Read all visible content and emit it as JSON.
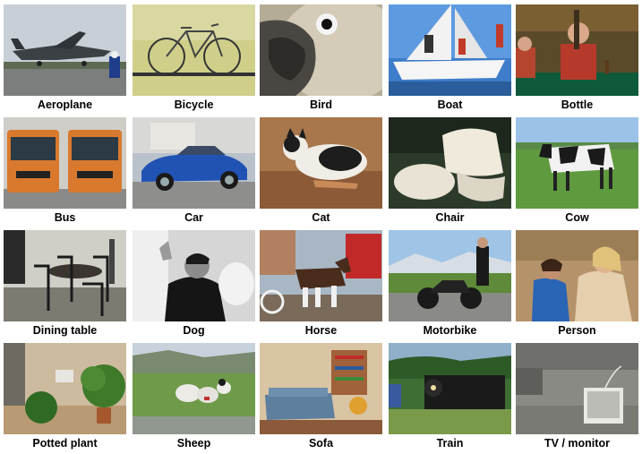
{
  "categories": [
    {
      "label": "Aeroplane",
      "icon": "aeroplane-photo"
    },
    {
      "label": "Bicycle",
      "icon": "bicycle-photo"
    },
    {
      "label": "Bird",
      "icon": "bird-photo"
    },
    {
      "label": "Boat",
      "icon": "boat-photo"
    },
    {
      "label": "Bottle",
      "icon": "bottle-photo"
    },
    {
      "label": "Bus",
      "icon": "bus-photo"
    },
    {
      "label": "Car",
      "icon": "car-photo"
    },
    {
      "label": "Cat",
      "icon": "cat-photo"
    },
    {
      "label": "Chair",
      "icon": "chair-photo"
    },
    {
      "label": "Cow",
      "icon": "cow-photo"
    },
    {
      "label": "Dining table",
      "icon": "dining-table-photo"
    },
    {
      "label": "Dog",
      "icon": "dog-photo"
    },
    {
      "label": "Horse",
      "icon": "horse-photo"
    },
    {
      "label": "Motorbike",
      "icon": "motorbike-photo"
    },
    {
      "label": "Person",
      "icon": "person-photo"
    },
    {
      "label": "Potted plant",
      "icon": "potted-plant-photo"
    },
    {
      "label": "Sheep",
      "icon": "sheep-photo"
    },
    {
      "label": "Sofa",
      "icon": "sofa-photo"
    },
    {
      "label": "Train",
      "icon": "train-photo"
    },
    {
      "label": "TV / monitor",
      "icon": "tv-monitor-photo"
    }
  ]
}
